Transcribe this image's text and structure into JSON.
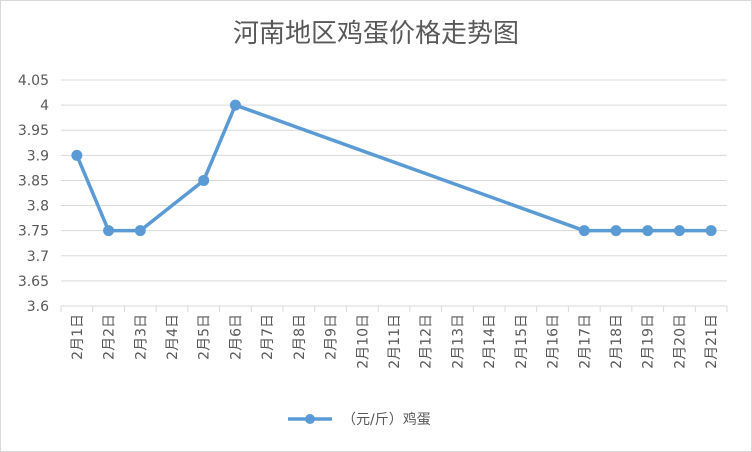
{
  "chart_data": {
    "type": "line",
    "title": "河南地区鸡蛋价格走势图",
    "categories": [
      "2月1日",
      "2月2日",
      "2月3日",
      "2月4日",
      "2月5日",
      "2月6日",
      "2月7日",
      "2月8日",
      "2月9日",
      "2月10日",
      "2月11日",
      "2月12日",
      "2月13日",
      "2月14日",
      "2月15日",
      "2月16日",
      "2月17日",
      "2月18日",
      "2月19日",
      "2月20日",
      "2月21日"
    ],
    "y_ticks": [
      "3.6",
      "3.65",
      "3.7",
      "3.75",
      "3.8",
      "3.85",
      "3.9",
      "3.95",
      "4",
      "4.05"
    ],
    "ylim": [
      3.6,
      4.05
    ],
    "grid": true,
    "legend_position": "bottom",
    "series": [
      {
        "name": "（元/斤）鸡蛋",
        "color": "#5b9bd5",
        "points": [
          {
            "x": "2月1日",
            "y": 3.9
          },
          {
            "x": "2月2日",
            "y": 3.75
          },
          {
            "x": "2月3日",
            "y": 3.75
          },
          {
            "x": "2月5日",
            "y": 3.85
          },
          {
            "x": "2月6日",
            "y": 4.0
          },
          {
            "x": "2月17日",
            "y": 3.75
          },
          {
            "x": "2月18日",
            "y": 3.75
          },
          {
            "x": "2月19日",
            "y": 3.75
          },
          {
            "x": "2月20日",
            "y": 3.75
          },
          {
            "x": "2月21日",
            "y": 3.75
          }
        ]
      }
    ]
  }
}
